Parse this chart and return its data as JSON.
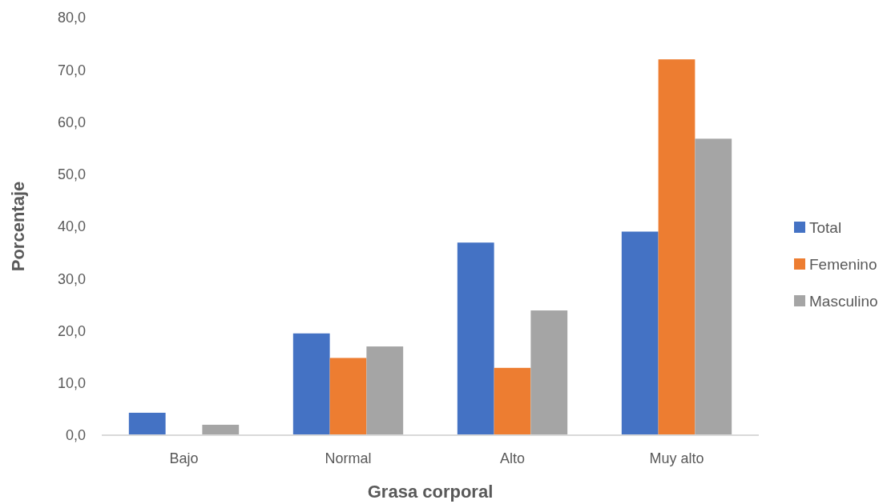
{
  "chart_data": {
    "type": "bar",
    "xlabel": "Grasa corporal",
    "ylabel": "Porcentaje",
    "categories": [
      "Bajo",
      "Normal",
      "Alto",
      "Muy alto"
    ],
    "series": [
      {
        "name": "Total",
        "color": "#4472c4",
        "values": [
          4.3,
          19.5,
          36.9,
          39.0
        ]
      },
      {
        "name": "Femenino",
        "color": "#ed7d31",
        "values": [
          0,
          14.8,
          12.9,
          72.0
        ]
      },
      {
        "name": "Masculino",
        "color": "#a5a5a5",
        "values": [
          2.0,
          17.0,
          23.9,
          56.8
        ]
      }
    ],
    "ylim": [
      0,
      80
    ],
    "yticks": [
      {
        "value": 0,
        "label": "0,0"
      },
      {
        "value": 10,
        "label": "10,0"
      },
      {
        "value": 20,
        "label": "20,0"
      },
      {
        "value": 30,
        "label": "30,0"
      },
      {
        "value": 40,
        "label": "40,0"
      },
      {
        "value": 50,
        "label": "50,0"
      },
      {
        "value": 60,
        "label": "60,0"
      },
      {
        "value": 70,
        "label": "70,0"
      },
      {
        "value": 80,
        "label": "80,0"
      }
    ],
    "grid": false,
    "legend": "right"
  }
}
